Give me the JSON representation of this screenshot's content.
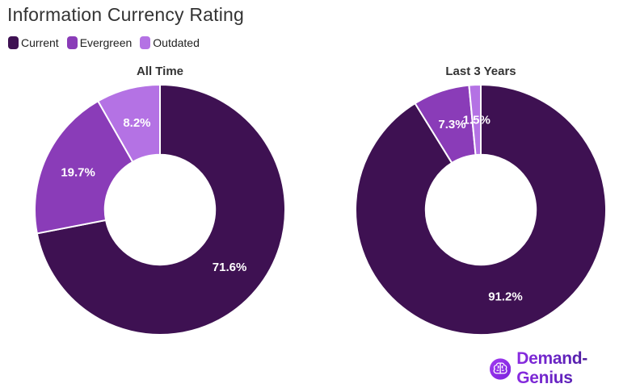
{
  "page": {
    "title": "Information Currency Rating",
    "background": "#ffffff"
  },
  "legend": {
    "position": "top-left",
    "items": [
      {
        "label": "Current",
        "color": "#3E1152"
      },
      {
        "label": "Evergreen",
        "color": "#8A3CB8"
      },
      {
        "label": "Outdated",
        "color": "#B472E4"
      }
    ]
  },
  "chart_data": [
    {
      "type": "pie",
      "donut": true,
      "title": "All Time",
      "labels": [
        "Current",
        "Evergreen",
        "Outdated"
      ],
      "values": [
        71.6,
        19.7,
        8.2
      ],
      "unit": "%",
      "colors": [
        "#3E1152",
        "#8A3CB8",
        "#B472E4"
      ],
      "start_angle_deg": 0,
      "direction": "clockwise",
      "donut_hole_ratio": 0.44,
      "label_radius_ratio": 0.72,
      "slice_border_color": "#ffffff",
      "legend_position": "top-left"
    },
    {
      "type": "pie",
      "donut": true,
      "title": "Last 3 Years",
      "labels": [
        "Current",
        "Evergreen",
        "Outdated"
      ],
      "values": [
        91.2,
        7.3,
        1.5
      ],
      "unit": "%",
      "colors": [
        "#3E1152",
        "#8A3CB8",
        "#B472E4"
      ],
      "start_angle_deg": 0,
      "direction": "clockwise",
      "donut_hole_ratio": 0.44,
      "label_radius_ratio": 0.72,
      "slice_border_color": "#ffffff",
      "legend_position": "top-left"
    }
  ],
  "branding": {
    "logo_text": "Demand-Genius",
    "logo_icon": "brain-icon",
    "badge_color_from": "#A13BF0",
    "badge_color_to": "#7B22DD",
    "text_color_from": "#8A2BE2",
    "text_color_to": "#231036"
  }
}
